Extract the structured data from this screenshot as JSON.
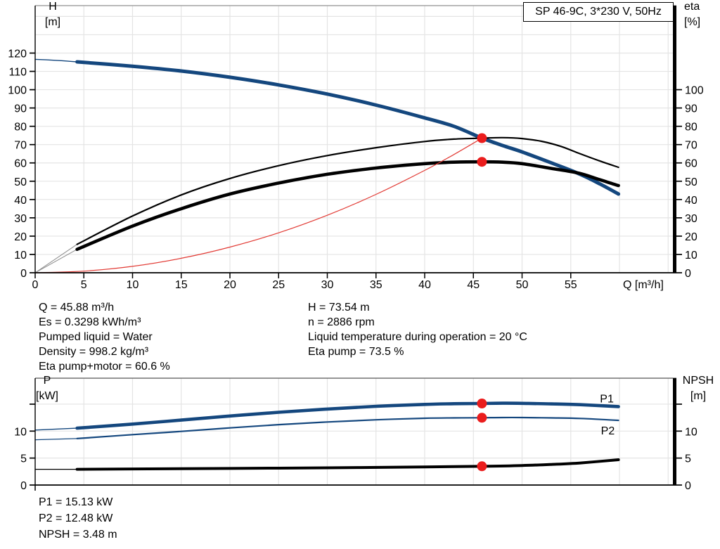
{
  "page": {
    "background": "#ffffff"
  },
  "colors": {
    "blue": "#14477e",
    "black": "#000000",
    "red": "#e23b35",
    "dot": "#ea1d1d",
    "grid": "#e4e4e4",
    "lead": "#8c8c8c",
    "axis": "#000000",
    "frame_top": "#919191"
  },
  "chart_data": [
    {
      "type": "line",
      "title": "SP 46-9C, 3*230 V, 50Hz",
      "y_left_label": "H",
      "y_left_unit": "[m]",
      "y_right_label": "eta",
      "y_right_unit": "[%]",
      "x_axis": {
        "unit_label": "Q [m³/h]",
        "values": [
          0,
          5,
          10,
          15,
          20,
          25,
          30,
          35,
          40,
          45,
          50,
          55
        ],
        "labels": [
          "0",
          "5",
          "10",
          "15",
          "20",
          "25",
          "30",
          "35",
          "40",
          "45",
          "50",
          "55"
        ],
        "grid": [
          5,
          10,
          15,
          20,
          25,
          30,
          35,
          40,
          45,
          50,
          55,
          60,
          65
        ],
        "range": [
          0,
          65.5
        ]
      },
      "y_left_axis": {
        "values": [
          0,
          10,
          20,
          30,
          40,
          50,
          60,
          70,
          80,
          90,
          100,
          110,
          120
        ],
        "labels": [
          "0",
          "10",
          "20",
          "30",
          "40",
          "50",
          "60",
          "70",
          "80",
          "90",
          "100",
          "110",
          "120"
        ],
        "grid": [
          10,
          20,
          30,
          40,
          50,
          60,
          70,
          80,
          90,
          100,
          110,
          120,
          130,
          140
        ],
        "range": [
          0,
          145.9
        ]
      },
      "y_right_axis": {
        "values": [
          0,
          10,
          20,
          30,
          40,
          50,
          60,
          70,
          80,
          90,
          100
        ],
        "labels": [
          "0",
          "10",
          "20",
          "30",
          "40",
          "50",
          "60",
          "70",
          "80",
          "90",
          "100"
        ]
      },
      "series": [
        {
          "name": "head-lead",
          "color": "blue",
          "width": 1.4,
          "points": [
            [
              0,
              116.6
            ],
            [
              2.2,
              116.0
            ],
            [
              4.3,
              115.2
            ]
          ]
        },
        {
          "name": "head",
          "color": "blue",
          "width": 5,
          "points": [
            [
              4.3,
              115.2
            ],
            [
              10,
              112.8
            ],
            [
              15,
              110.2
            ],
            [
              20,
              106.8
            ],
            [
              25,
              102.6
            ],
            [
              30,
              97.6
            ],
            [
              35,
              91.6
            ],
            [
              40,
              84.6
            ],
            [
              43,
              80.0
            ],
            [
              45.88,
              73.54
            ],
            [
              48,
              69.5
            ],
            [
              50,
              66.0
            ],
            [
              53,
              60.0
            ],
            [
              55.8,
              54.2
            ],
            [
              58,
              48.5
            ],
            [
              59.9,
              43.0
            ]
          ]
        },
        {
          "name": "eta-pump-lead",
          "color": "lead",
          "width": 1,
          "points": [
            [
              0,
              0
            ],
            [
              4.3,
              15.5
            ]
          ]
        },
        {
          "name": "eta-pump",
          "color": "black",
          "width": 2.2,
          "points": [
            [
              4.3,
              15.5
            ],
            [
              10,
              31.0
            ],
            [
              15,
              42.5
            ],
            [
              20,
              51.5
            ],
            [
              25,
              58.5
            ],
            [
              30,
              64.0
            ],
            [
              35,
              68.3
            ],
            [
              40,
              71.7
            ],
            [
              43,
              73.0
            ],
            [
              45.88,
              73.5
            ],
            [
              48,
              73.8
            ],
            [
              50,
              73.3
            ],
            [
              52,
              71.8
            ],
            [
              54,
              69.0
            ],
            [
              55.8,
              65.3
            ],
            [
              58,
              61.0
            ],
            [
              59.9,
              57.6
            ]
          ]
        },
        {
          "name": "eta-pump-motor-lead",
          "color": "lead",
          "width": 1,
          "points": [
            [
              0,
              0
            ],
            [
              4.3,
              12.8
            ]
          ]
        },
        {
          "name": "eta-pump-motor",
          "color": "black",
          "width": 4.6,
          "points": [
            [
              4.3,
              12.8
            ],
            [
              10,
              25.5
            ],
            [
              15,
              35.0
            ],
            [
              20,
              43.0
            ],
            [
              25,
              49.0
            ],
            [
              30,
              53.8
            ],
            [
              35,
              57.2
            ],
            [
              40,
              59.6
            ],
            [
              43,
              60.4
            ],
            [
              45.88,
              60.6
            ],
            [
              48,
              60.4
            ],
            [
              50,
              59.6
            ],
            [
              53,
              57.0
            ],
            [
              55.8,
              54.4
            ],
            [
              58,
              50.8
            ],
            [
              59.9,
              47.6
            ]
          ]
        },
        {
          "name": "system-curve",
          "color": "red",
          "width": 1.2,
          "points": [
            [
              0,
              0
            ],
            [
              5,
              0.9
            ],
            [
              10,
              3.5
            ],
            [
              15,
              7.9
            ],
            [
              20,
              14.0
            ],
            [
              25,
              21.8
            ],
            [
              30,
              31.4
            ],
            [
              35,
              42.8
            ],
            [
              40,
              55.9
            ],
            [
              43,
              64.6
            ],
            [
              45.88,
              73.54
            ]
          ]
        }
      ],
      "dots": [
        [
          45.88,
          73.54
        ],
        [
          45.88,
          60.6
        ]
      ],
      "labels": []
    },
    {
      "type": "line",
      "y_left_label": "P",
      "y_left_unit": "[kW]",
      "y_right_label": "NPSH",
      "y_right_unit": "[m]",
      "x_axis": {
        "values": [
          0
        ],
        "labels": [
          ""
        ],
        "grid": [
          5,
          10,
          15,
          20,
          25,
          30,
          35,
          40,
          45,
          50,
          55,
          60,
          65
        ],
        "range": [
          0,
          65.5
        ]
      },
      "y_left_axis": {
        "values": [
          0,
          5,
          10,
          15
        ],
        "labels": [
          "0",
          "5",
          "10",
          ""
        ],
        "grid": [
          5,
          10,
          15
        ],
        "range": [
          0,
          19.8
        ]
      },
      "y_right_axis": {
        "values": [
          0,
          5,
          10,
          15
        ],
        "labels": [
          "0",
          "5",
          "10",
          ""
        ]
      },
      "series": [
        {
          "name": "p1-lead",
          "color": "blue",
          "width": 1.4,
          "points": [
            [
              0,
              10.2
            ],
            [
              4.3,
              10.55
            ]
          ]
        },
        {
          "name": "p1",
          "color": "blue",
          "width": 4.6,
          "points": [
            [
              4.3,
              10.55
            ],
            [
              10,
              11.3
            ],
            [
              15,
              12.05
            ],
            [
              20,
              12.8
            ],
            [
              25,
              13.5
            ],
            [
              30,
              14.1
            ],
            [
              35,
              14.6
            ],
            [
              40,
              14.95
            ],
            [
              43,
              15.08
            ],
            [
              45.88,
              15.13
            ],
            [
              48,
              15.18
            ],
            [
              50,
              15.15
            ],
            [
              53,
              15.05
            ],
            [
              56,
              14.9
            ],
            [
              59.9,
              14.55
            ]
          ]
        },
        {
          "name": "p2-lead",
          "color": "blue",
          "width": 1.2,
          "points": [
            [
              0,
              8.4
            ],
            [
              4.3,
              8.62
            ]
          ]
        },
        {
          "name": "p2",
          "color": "blue",
          "width": 2.2,
          "points": [
            [
              4.3,
              8.62
            ],
            [
              10,
              9.35
            ],
            [
              15,
              9.95
            ],
            [
              20,
              10.6
            ],
            [
              25,
              11.2
            ],
            [
              30,
              11.7
            ],
            [
              35,
              12.1
            ],
            [
              40,
              12.38
            ],
            [
              43,
              12.45
            ],
            [
              45.88,
              12.48
            ],
            [
              48,
              12.52
            ],
            [
              50,
              12.52
            ],
            [
              53,
              12.45
            ],
            [
              56,
              12.35
            ],
            [
              59.9,
              12.0
            ]
          ]
        },
        {
          "name": "npsh-lead",
          "color": "black",
          "width": 1.2,
          "points": [
            [
              0,
              2.92
            ],
            [
              4.3,
              2.92
            ]
          ]
        },
        {
          "name": "npsh",
          "color": "black",
          "width": 4,
          "points": [
            [
              4.3,
              2.92
            ],
            [
              10,
              2.98
            ],
            [
              20,
              3.08
            ],
            [
              30,
              3.2
            ],
            [
              40,
              3.36
            ],
            [
              45.88,
              3.48
            ],
            [
              50,
              3.62
            ],
            [
              53,
              3.82
            ],
            [
              56,
              4.1
            ],
            [
              59.9,
              4.7
            ]
          ]
        }
      ],
      "dots": [
        [
          45.88,
          15.13
        ],
        [
          45.88,
          12.48
        ],
        [
          45.88,
          3.48
        ]
      ],
      "labels": [
        {
          "text": "P1",
          "q": 58.0,
          "v": 15.3
        },
        {
          "text": "P2",
          "q": 58.1,
          "v": 9.4
        }
      ]
    }
  ],
  "info_top": {
    "left": [
      "Q = 45.88 m³/h",
      "Es = 0.3298 kWh/m³",
      "Pumped liquid = Water",
      "Density = 998.2 kg/m³",
      "Eta pump+motor = 60.6 %"
    ],
    "right": [
      "H = 73.54 m",
      "n = 2886 rpm",
      "Liquid temperature during operation = 20 °C",
      "Eta pump = 73.5 %"
    ]
  },
  "info_bottom": [
    "P1 = 15.13 kW",
    "P2 = 12.48 kW",
    "NPSH = 3.48 m"
  ]
}
